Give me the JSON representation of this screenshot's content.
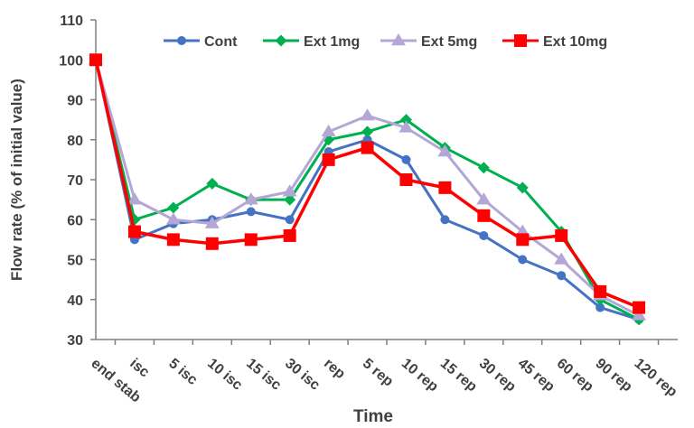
{
  "chart_data": {
    "type": "line",
    "title": "",
    "xlabel": "Time",
    "ylabel": "Flow rate (% of initial value)",
    "ylim": [
      30,
      110
    ],
    "yticks": [
      30,
      40,
      50,
      60,
      70,
      80,
      90,
      100,
      110
    ],
    "grid": false,
    "legend_position": "top",
    "categories": [
      "end stab",
      "isc",
      "5  isc",
      "10 isc",
      "15 isc",
      "30 isc",
      "rep",
      "5 rep",
      "10 rep",
      "15 rep",
      "30 rep",
      "45 rep",
      "60 rep",
      "90 rep",
      "120 rep"
    ],
    "series": [
      {
        "name": "Cont",
        "color": "#4472C4",
        "marker": "circle",
        "values": [
          100,
          55,
          59,
          60,
          62,
          60,
          77,
          80,
          75,
          60,
          56,
          50,
          46,
          38,
          35
        ]
      },
      {
        "name": "Ext 1mg",
        "color": "#00B050",
        "marker": "diamond",
        "values": [
          100,
          60,
          63,
          69,
          65,
          65,
          80,
          82,
          85,
          78,
          73,
          68,
          57,
          40,
          35
        ]
      },
      {
        "name": "Ext 5mg",
        "color": "#B4A7D6",
        "marker": "triangle",
        "values": [
          100,
          65,
          60,
          59,
          65,
          67,
          82,
          86,
          83,
          77,
          65,
          57,
          50,
          41,
          36
        ]
      },
      {
        "name": "Ext 10mg",
        "color": "#FF0000",
        "marker": "square",
        "values": [
          100,
          57,
          55,
          54,
          55,
          56,
          75,
          78,
          70,
          68,
          61,
          55,
          56,
          42,
          38
        ]
      }
    ]
  }
}
